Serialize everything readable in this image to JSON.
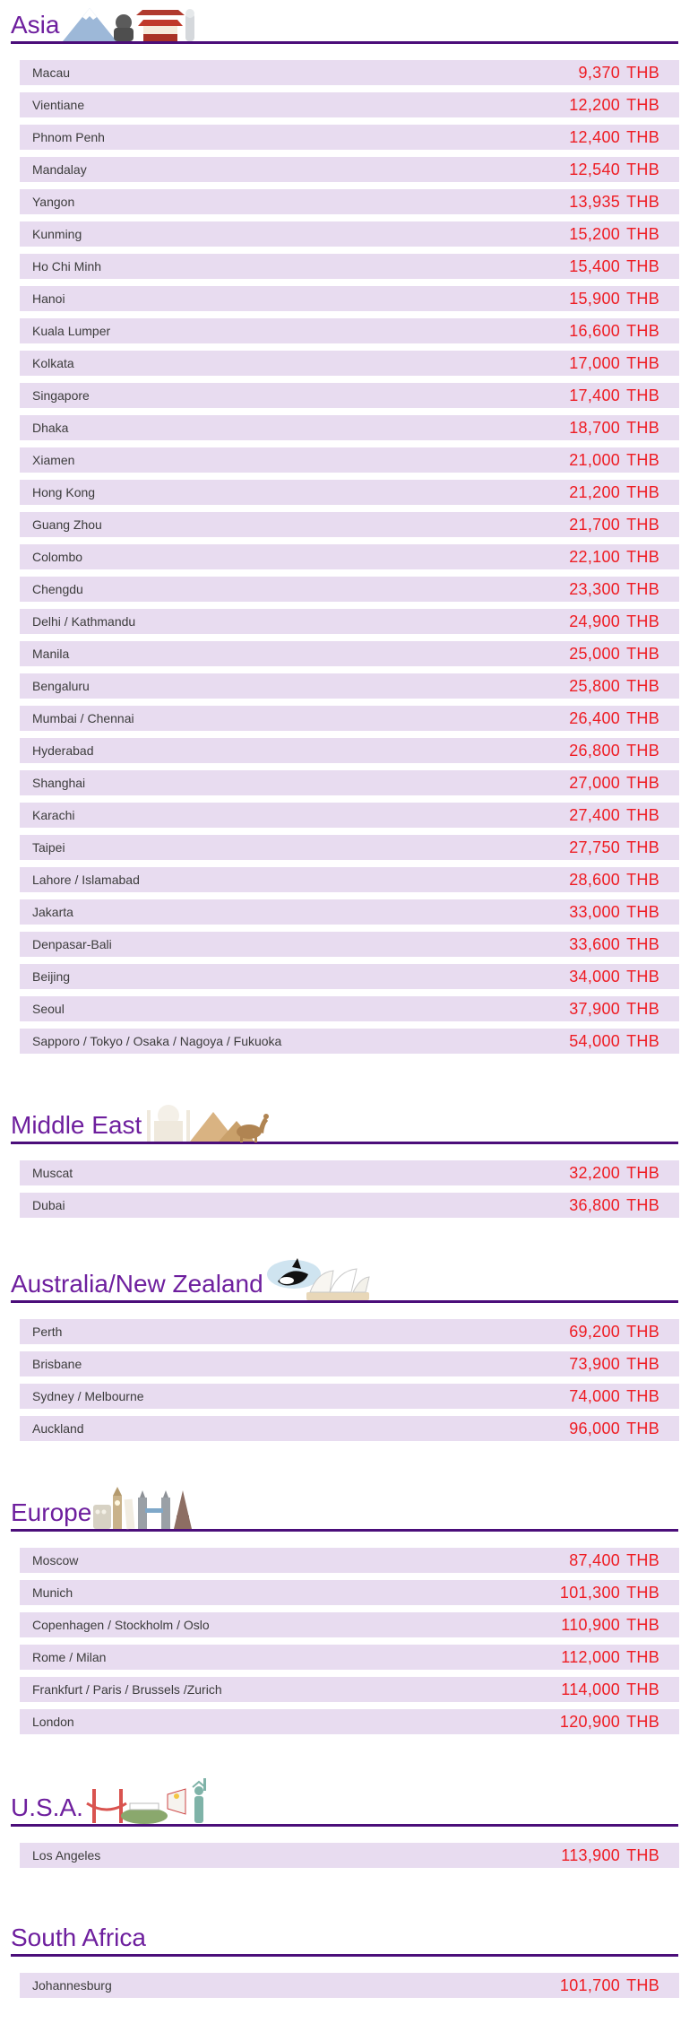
{
  "currency": "THB",
  "colors": {
    "header_purple": "#6e1f9e",
    "underline_purple": "#4b0e7a",
    "row_background": "#e8dcf0",
    "price_red": "#ee1c23",
    "city_text": "#3c3c3c"
  },
  "sections": [
    {
      "id": "asia",
      "title": "Asia",
      "icon": "asia-landmarks-icon",
      "rows": [
        {
          "city": "Macau",
          "price": "9,370"
        },
        {
          "city": "Vientiane",
          "price": "12,200"
        },
        {
          "city": "Phnom Penh",
          "price": "12,400"
        },
        {
          "city": "Mandalay",
          "price": "12,540"
        },
        {
          "city": "Yangon",
          "price": "13,935"
        },
        {
          "city": "Kunming",
          "price": "15,200"
        },
        {
          "city": "Ho Chi Minh",
          "price": "15,400"
        },
        {
          "city": "Hanoi",
          "price": "15,900"
        },
        {
          "city": "Kuala Lumper",
          "price": "16,600"
        },
        {
          "city": "Kolkata",
          "price": "17,000"
        },
        {
          "city": "Singapore",
          "price": "17,400"
        },
        {
          "city": "Dhaka",
          "price": "18,700"
        },
        {
          "city": "Xiamen",
          "price": "21,000"
        },
        {
          "city": "Hong Kong",
          "price": "21,200"
        },
        {
          "city": "Guang Zhou",
          "price": "21,700"
        },
        {
          "city": "Colombo",
          "price": "22,100"
        },
        {
          "city": "Chengdu",
          "price": "23,300"
        },
        {
          "city": "Delhi / Kathmandu",
          "price": "24,900"
        },
        {
          "city": "Manila",
          "price": "25,000"
        },
        {
          "city": "Bengaluru",
          "price": "25,800"
        },
        {
          "city": "Mumbai / Chennai",
          "price": "26,400"
        },
        {
          "city": "Hyderabad",
          "price": "26,800"
        },
        {
          "city": "Shanghai",
          "price": "27,000"
        },
        {
          "city": "Karachi",
          "price": "27,400"
        },
        {
          "city": "Taipei",
          "price": "27,750"
        },
        {
          "city": "Lahore / Islamabad",
          "price": "28,600"
        },
        {
          "city": "Jakarta",
          "price": "33,000"
        },
        {
          "city": "Denpasar-Bali",
          "price": "33,600"
        },
        {
          "city": "Beijing",
          "price": "34,000"
        },
        {
          "city": "Seoul",
          "price": "37,900"
        },
        {
          "city": "Sapporo / Tokyo / Osaka / Nagoya / Fukuoka",
          "price": "54,000"
        }
      ]
    },
    {
      "id": "middle-east",
      "title": "Middle East",
      "icon": "middle-east-landmarks-icon",
      "rows": [
        {
          "city": "Muscat",
          "price": "32,200"
        },
        {
          "city": "Dubai",
          "price": "36,800"
        }
      ]
    },
    {
      "id": "australia-nz",
      "title": "Australia/New Zealand",
      "icon": "australia-landmarks-icon",
      "rows": [
        {
          "city": "Perth",
          "price": "69,200"
        },
        {
          "city": "Brisbane",
          "price": "73,900"
        },
        {
          "city": "Sydney / Melbourne",
          "price": "74,000"
        },
        {
          "city": "Auckland",
          "price": "96,000"
        }
      ]
    },
    {
      "id": "europe",
      "title": "Europe",
      "icon": "europe-landmarks-icon",
      "rows": [
        {
          "city": "Moscow",
          "price": "87,400"
        },
        {
          "city": "Munich",
          "price": "101,300"
        },
        {
          "city": "Copenhagen / Stockholm / Oslo",
          "price": "110,900"
        },
        {
          "city": "Rome / Milan",
          "price": "112,000"
        },
        {
          "city": "Frankfurt / Paris / Brussels /Zurich",
          "price": "114,000"
        },
        {
          "city": "London",
          "price": "120,900"
        }
      ]
    },
    {
      "id": "usa",
      "title": "U.S.A.",
      "icon": "usa-landmarks-icon",
      "rows": [
        {
          "city": "Los Angeles",
          "price": "113,900"
        }
      ]
    },
    {
      "id": "south-africa",
      "title": "South Africa",
      "icon": null,
      "rows": [
        {
          "city": "Johannesburg",
          "price": "101,700"
        }
      ]
    }
  ]
}
